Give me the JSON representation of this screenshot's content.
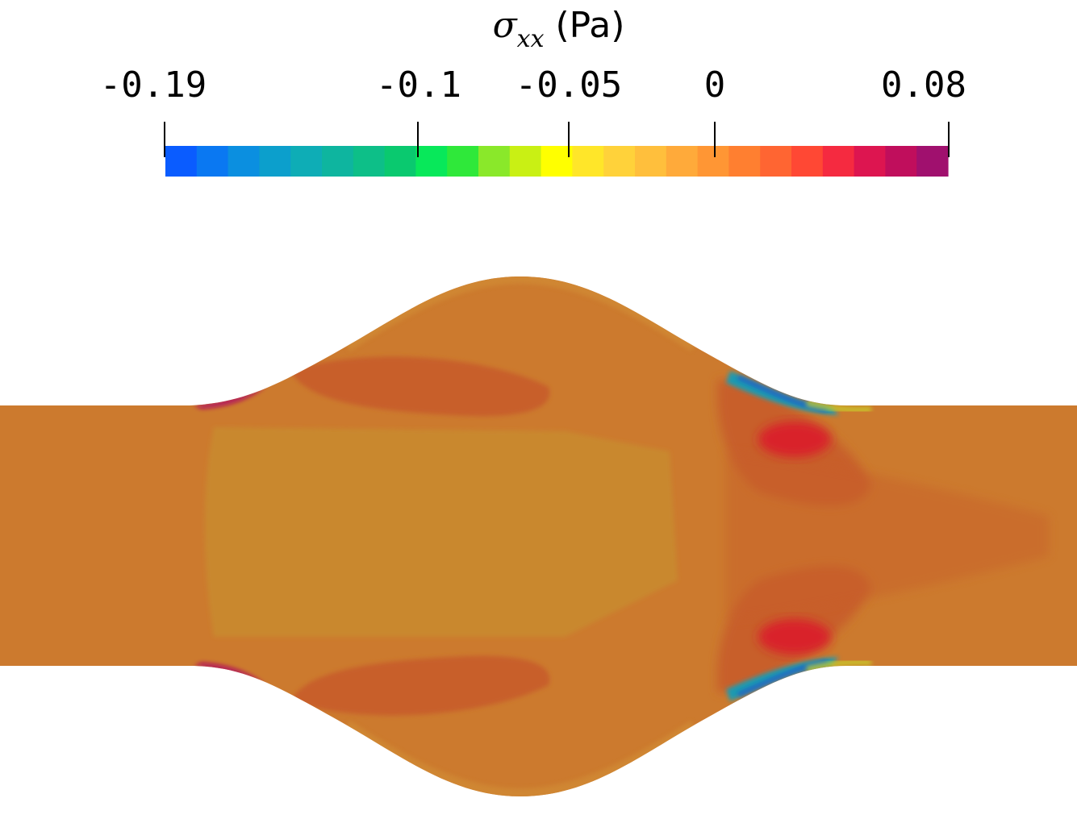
{
  "colorbar": {
    "symbol": "σ",
    "subscript": "xx",
    "unit": "(Pa)",
    "min": -0.19,
    "max": 0.08,
    "ticks": [
      {
        "value": -0.19,
        "label": "-0.19"
      },
      {
        "value": -0.1,
        "label": "-0.1"
      },
      {
        "value": -0.05,
        "label": "-0.05"
      },
      {
        "value": 0,
        "label": "0"
      },
      {
        "value": 0.08,
        "label": "0.08"
      }
    ],
    "colors": [
      "#0a5cff",
      "#0a78f2",
      "#0b8fe0",
      "#0c9fcc",
      "#0eadb6",
      "#0eb59f",
      "#0dbf88",
      "#0ac96f",
      "#08e85a",
      "#2fe83a",
      "#8ae82a",
      "#c9f014",
      "#ffff00",
      "#ffe629",
      "#ffd23a",
      "#ffbf3c",
      "#ffaa3a",
      "#ff9634",
      "#ff7f30",
      "#ff6532",
      "#ff4834",
      "#f52a40",
      "#dd1550",
      "#c00e5c",
      "#a0106e"
    ]
  },
  "field": {
    "background": "#cc7a2e",
    "core_color": "#c9882e",
    "band_color": "#c85f2a",
    "hot_color": "#d9222a",
    "low_color": "#1b7ec8"
  }
}
